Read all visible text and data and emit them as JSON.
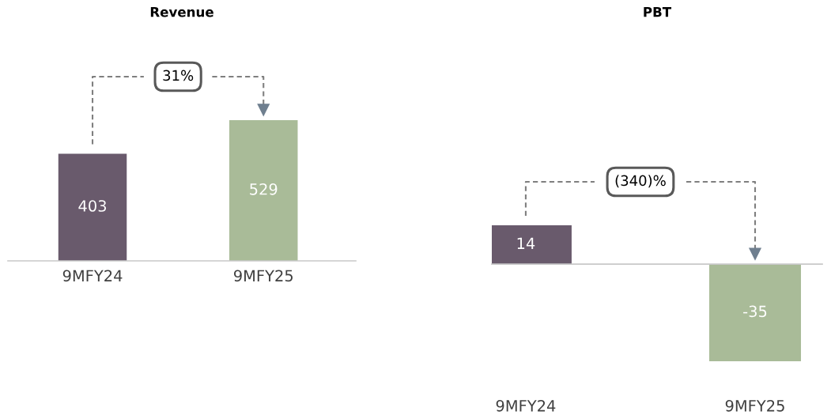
{
  "chart_data": [
    {
      "type": "bar",
      "title": "Revenue",
      "categories": [
        "9MFY24",
        "9MFY25"
      ],
      "values": [
        403,
        529
      ],
      "colors": [
        "#695a6c",
        "#a9bb98"
      ],
      "data_labels": true,
      "annotations": [
        "31%"
      ]
    },
    {
      "type": "bar",
      "title": "PBT",
      "categories": [
        "9MFY24",
        "9MFY25"
      ],
      "values": [
        14,
        -35
      ],
      "colors": [
        "#695a6c",
        "#a9bb98"
      ],
      "data_labels": true,
      "annotations": [
        "(340)%"
      ]
    }
  ]
}
